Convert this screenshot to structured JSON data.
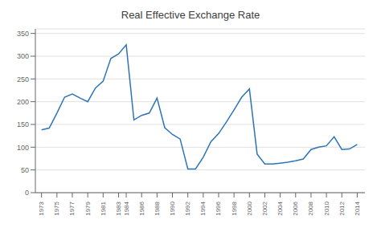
{
  "chart_data": {
    "type": "line",
    "title": "Real Effective Exchange Rate",
    "x": [
      1973,
      1974,
      1975,
      1976,
      1977,
      1978,
      1979,
      1980,
      1981,
      1982,
      1983,
      1984,
      1985,
      1986,
      1987,
      1988,
      1989,
      1990,
      1991,
      1992,
      1993,
      1994,
      1995,
      1996,
      1997,
      1998,
      1999,
      2000,
      2001,
      2002,
      2003,
      2004,
      2005,
      2006,
      2007,
      2008,
      2009,
      2010,
      2011,
      2012,
      2013,
      2014
    ],
    "values": [
      138,
      142,
      175,
      210,
      217,
      208,
      200,
      230,
      245,
      295,
      305,
      325,
      160,
      170,
      175,
      208,
      143,
      128,
      118,
      52,
      52,
      78,
      112,
      130,
      155,
      182,
      210,
      228,
      85,
      63,
      63,
      65,
      67,
      70,
      74,
      95,
      100,
      103,
      123,
      95,
      96,
      106
    ],
    "color": "#2E75B6",
    "xlim": [
      1972.2,
      2015.0
    ],
    "xticks": [
      1973,
      1975,
      1977,
      1979,
      1981,
      1983,
      1984,
      1986,
      1988,
      1990,
      1992,
      1994,
      1996,
      1998,
      2000,
      2002,
      2004,
      2006,
      2008,
      2010,
      2012,
      2014
    ],
    "ylim": [
      0,
      360
    ],
    "yticks": [
      0,
      50,
      100,
      150,
      200,
      250,
      300,
      350
    ],
    "grid": true
  }
}
